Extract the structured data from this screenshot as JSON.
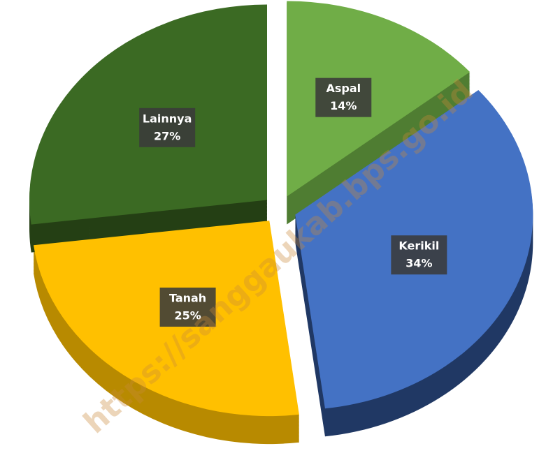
{
  "chart_data": {
    "type": "pie",
    "categories": [
      "Aspal",
      "Kerikil",
      "Tanah",
      "Lainnya"
    ],
    "values": [
      14,
      34,
      25,
      27
    ],
    "value_labels": [
      "14%",
      "34%",
      "25%",
      "27%"
    ],
    "colors": [
      "#70ad47",
      "#4472c4",
      "#ffc000",
      "#3b6a23"
    ],
    "side_colors": [
      "#4f7d32",
      "#203864",
      "#b88a00",
      "#243f14"
    ],
    "watermark": "https://sanggaukab.bps.go.id"
  }
}
